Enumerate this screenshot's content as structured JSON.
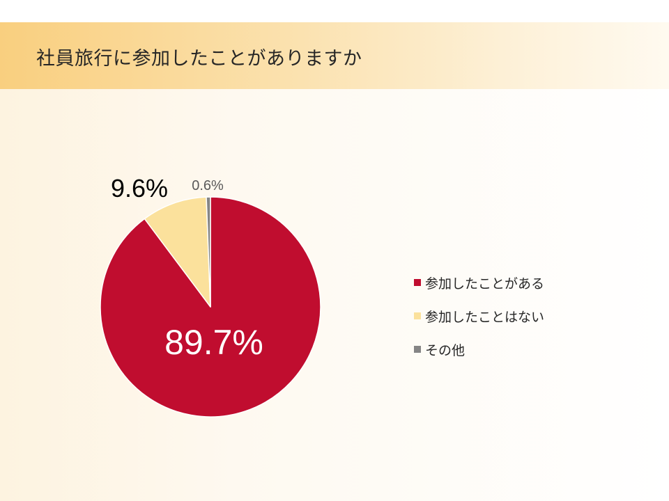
{
  "slide": {
    "title": "社員旅行に参加したことがありますか"
  },
  "chart_data": {
    "type": "pie",
    "title": "",
    "categories": [
      "参加したことがある",
      "参加したことはない",
      "その他"
    ],
    "values": [
      89.7,
      9.6,
      0.6
    ],
    "data_labels": [
      "89.7%",
      "9.6%",
      "0.6%"
    ],
    "colors": [
      "#c00d2f",
      "#fbe19c",
      "#858585"
    ],
    "label_colors": [
      "#ffffff",
      "#000000",
      "#595959"
    ],
    "start_angle": "12 o'clock",
    "direction": "clockwise",
    "legend_position": "right"
  },
  "legend": {
    "items": [
      {
        "label": "参加したことがある",
        "color": "#c00d2f"
      },
      {
        "label": "参加したことはない",
        "color": "#fbe19c"
      },
      {
        "label": "その他",
        "color": "#858585"
      }
    ]
  }
}
